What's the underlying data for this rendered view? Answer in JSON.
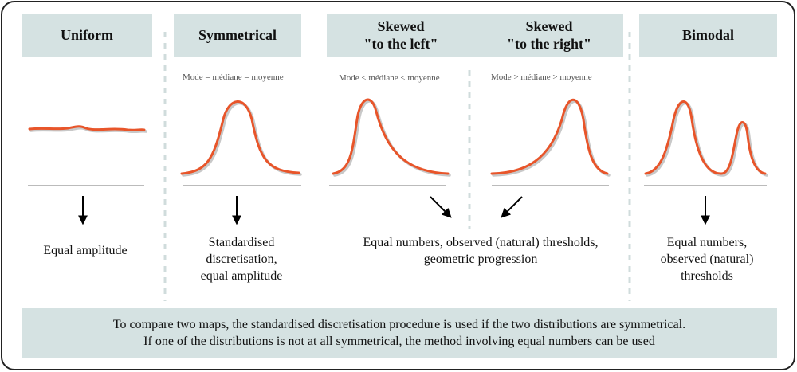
{
  "headers": {
    "uniform": "Uniform",
    "symmetrical": "Symmetrical",
    "skewed_left_1": "Skewed",
    "skewed_left_2": "\"to the left\"",
    "skewed_right_1": "Skewed",
    "skewed_right_2": "\"to the right\"",
    "bimodal": "Bimodal"
  },
  "relations": {
    "symmetrical": "Mode = médiane = moyenne",
    "skewed_left": "Mode < médiane < moyenne",
    "skewed_right": "Mode > médiane > moyenne"
  },
  "methods": {
    "uniform": "Equal amplitude",
    "symmetrical": [
      "Standardised",
      "discretisation,",
      "equal amplitude"
    ],
    "skewed": [
      "Equal numbers, observed (natural) thresholds,",
      "geometric progression"
    ],
    "bimodal": [
      "Equal numbers,",
      "observed (natural)",
      "thresholds"
    ]
  },
  "note": [
    "To compare two maps, the standardised discretisation procedure is used if the two distributions are symmetrical.",
    "If one of the distributions is not at all  symmetrical, the method involving equal numbers can be used"
  ],
  "colors": {
    "curve": "#e8552a",
    "shadow": "#c8c8c8",
    "panel": "#d5e2e2",
    "separator": "#d0dcdc"
  }
}
